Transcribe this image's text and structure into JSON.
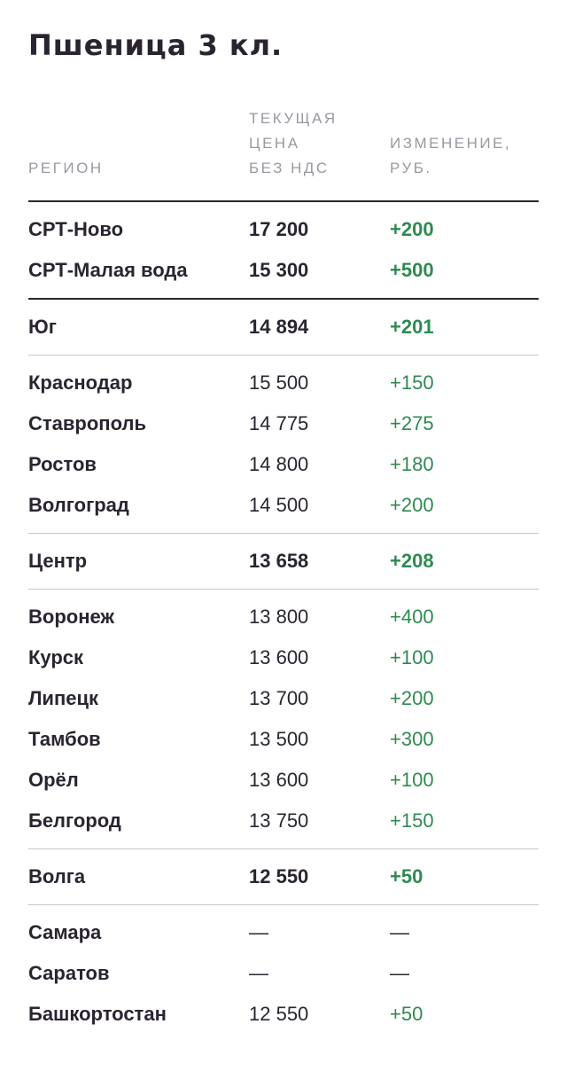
{
  "title": "Пшеница 3 кл.",
  "columns": {
    "region": "РЕГИОН",
    "price_line1": "ТЕКУЩАЯ",
    "price_line2": "ЦЕНА",
    "price_line3": "БЕЗ НДС",
    "change_line1": "ИЗМЕНЕНИЕ,",
    "change_line2": "РУБ."
  },
  "groups": {
    "srt": [
      {
        "region": "СРТ-Ново",
        "price": "17 200",
        "change": "+200"
      },
      {
        "region": "СРТ-Малая вода",
        "price": "15 300",
        "change": "+500"
      }
    ],
    "south_summary": {
      "region": "Юг",
      "price": "14 894",
      "change": "+201"
    },
    "south": [
      {
        "region": "Краснодар",
        "price": "15 500",
        "change": "+150"
      },
      {
        "region": "Ставрополь",
        "price": "14 775",
        "change": "+275"
      },
      {
        "region": "Ростов",
        "price": "14 800",
        "change": "+180"
      },
      {
        "region": "Волгоград",
        "price": "14 500",
        "change": "+200"
      }
    ],
    "center_summary": {
      "region": "Центр",
      "price": "13 658",
      "change": "+208"
    },
    "center": [
      {
        "region": "Воронеж",
        "price": "13 800",
        "change": "+400"
      },
      {
        "region": "Курск",
        "price": "13 600",
        "change": "+100"
      },
      {
        "region": "Липецк",
        "price": "13 700",
        "change": "+200"
      },
      {
        "region": "Тамбов",
        "price": "13 500",
        "change": "+300"
      },
      {
        "region": "Орёл",
        "price": "13 600",
        "change": "+100"
      },
      {
        "region": "Белгород",
        "price": "13 750",
        "change": "+150"
      }
    ],
    "volga_summary": {
      "region": "Волга",
      "price": "12 550",
      "change": "+50"
    },
    "volga": [
      {
        "region": "Самара",
        "price": "—",
        "change": "—"
      },
      {
        "region": "Саратов",
        "price": "—",
        "change": "—"
      },
      {
        "region": "Башкортостан",
        "price": "12 550",
        "change": "+50"
      }
    ]
  },
  "colors": {
    "text": "#2a2430",
    "muted": "#9a97a0",
    "positive": "#2e8a50",
    "divider": "#c9c6cc"
  }
}
